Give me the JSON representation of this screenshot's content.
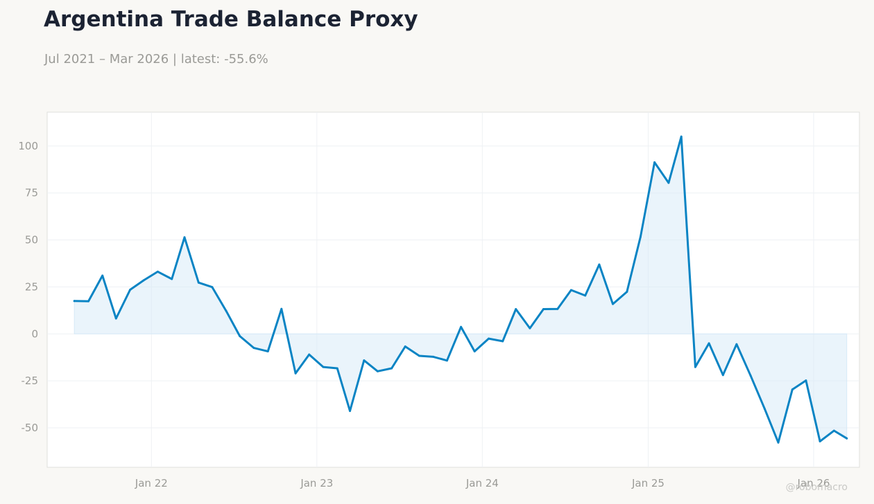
{
  "title": "Argentina Trade Balance Proxy",
  "subtitle": "Jul 2021 – Mar 2026 | latest: -55.6%",
  "watermark": "@robomacro",
  "colors": {
    "line": "#0a84c4",
    "fill": "#d6e9f7",
    "background": "#f9f8f5",
    "plot_background": "#ffffff",
    "grid": "#eef1f4",
    "text_muted": "#9a9a96",
    "title": "#1c2333"
  },
  "chart_data": {
    "type": "area",
    "title": "Argentina Trade Balance Proxy",
    "subtitle": "Jul 2021 – Mar 2026 | latest: -55.6%",
    "xlabel": "",
    "ylabel": "",
    "ylim": [
      -71,
      118
    ],
    "xlim": [
      "2021-05-16",
      "2026-04-12"
    ],
    "grid": true,
    "legend": "none",
    "x_ticks": [
      {
        "date": "2022-01-01",
        "label": "Jan 22"
      },
      {
        "date": "2023-01-01",
        "label": "Jan 23"
      },
      {
        "date": "2024-01-01",
        "label": "Jan 24"
      },
      {
        "date": "2025-01-01",
        "label": "Jan 25"
      },
      {
        "date": "2026-01-01",
        "label": "Jan 26"
      }
    ],
    "y_ticks": [
      -50,
      -25,
      0,
      25,
      50,
      75,
      100
    ],
    "series": [
      {
        "x": [
          "2021-07",
          "2021-08",
          "2021-09",
          "2021-10",
          "2021-11",
          "2021-12",
          "2022-01",
          "2022-02",
          "2022-03",
          "2022-04",
          "2022-05",
          "2022-06",
          "2022-07",
          "2022-08",
          "2022-09",
          "2022-10",
          "2022-11",
          "2022-12",
          "2023-01",
          "2023-02",
          "2023-03",
          "2023-04",
          "2023-05",
          "2023-06",
          "2023-07",
          "2023-08",
          "2023-09",
          "2023-10",
          "2023-11",
          "2023-12",
          "2024-01",
          "2024-02",
          "2024-03",
          "2024-04",
          "2024-05",
          "2024-06",
          "2024-07",
          "2024-08",
          "2024-09",
          "2024-10",
          "2024-11",
          "2024-12",
          "2025-01",
          "2025-02",
          "2025-03",
          "2025-04",
          "2025-05",
          "2025-06",
          "2025-07",
          "2025-08",
          "2025-09",
          "2025-10",
          "2025-11",
          "2025-12",
          "2026-01",
          "2026-02",
          "2026-03"
        ],
        "values": [
          17.5,
          17.4,
          31.0,
          8.2,
          23.5,
          28.5,
          33.1,
          29.2,
          51.4,
          27.3,
          24.9,
          12.2,
          -1.2,
          -7.5,
          -9.3,
          13.3,
          -21.0,
          -11.0,
          -17.6,
          -18.3,
          -41.0,
          -14.1,
          -19.9,
          -18.3,
          -6.7,
          -11.7,
          -12.2,
          -14.2,
          3.7,
          -9.3,
          -2.5,
          -3.9,
          13.2,
          3.0,
          13.2,
          13.3,
          23.3,
          20.4,
          36.9,
          15.9,
          22.4,
          51.7,
          91.3,
          80.4,
          105.0,
          -17.6,
          -5.0,
          -21.9,
          -5.5,
          -22.3,
          -39.9,
          -57.8,
          -29.6,
          -24.8,
          -57.2,
          -51.5,
          -55.6
        ]
      }
    ]
  }
}
